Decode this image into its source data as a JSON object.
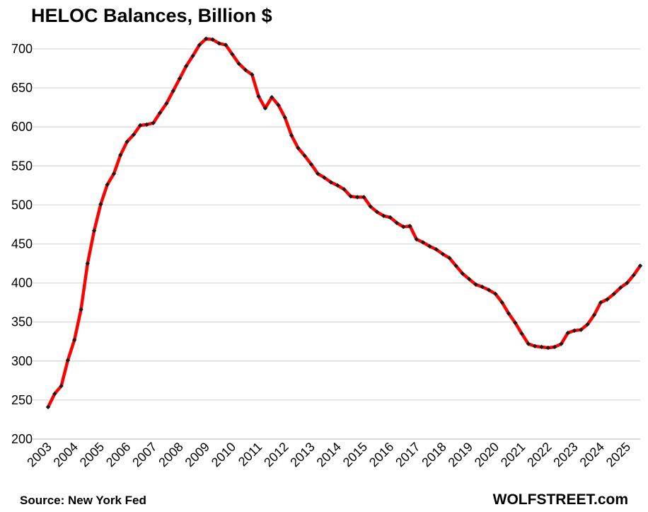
{
  "title": "HELOC Balances, Billion $",
  "source": "Source: New York Fed",
  "brand": "WOLFSTREET.com",
  "colors": {
    "line": "#ff0000",
    "marker": "#1a1a1a",
    "grid": "#d9d9d9",
    "axis": "#bfbfbf"
  },
  "chart_data": {
    "type": "line",
    "title": "HELOC Balances, Billion $",
    "xlabel": "",
    "ylabel": "",
    "ylim": [
      200,
      700
    ],
    "yticks": [
      200,
      250,
      300,
      350,
      400,
      450,
      500,
      550,
      600,
      650,
      700
    ],
    "xticks": [
      "2003",
      "2004",
      "2005",
      "2006",
      "2007",
      "2008",
      "2009",
      "2010",
      "2011",
      "2012",
      "2013",
      "2014",
      "2015",
      "2016",
      "2017",
      "2018",
      "2019",
      "2020",
      "2021",
      "2022",
      "2023",
      "2024",
      "2025"
    ],
    "grid": true,
    "legend": "none",
    "series": [
      {
        "x_start": "2003 Q1",
        "frequency": "quarterly",
        "values": [
          241,
          258,
          268,
          301,
          327,
          366,
          425,
          467,
          501,
          526,
          540,
          564,
          581,
          590,
          602,
          603,
          605,
          618,
          630,
          646,
          662,
          678,
          691,
          705,
          713,
          712,
          707,
          705,
          693,
          681,
          673,
          667,
          639,
          624,
          638,
          628,
          612,
          589,
          573,
          563,
          552,
          540,
          535,
          529,
          525,
          520,
          511,
          510,
          510,
          498,
          491,
          486,
          484,
          477,
          472,
          473,
          456,
          452,
          447,
          443,
          437,
          432,
          422,
          412,
          405,
          398,
          395,
          391,
          386,
          375,
          361,
          349,
          335,
          322,
          319,
          318,
          317,
          318,
          322,
          336,
          339,
          340,
          347,
          359,
          375,
          379,
          386,
          394,
          400,
          410,
          422
        ]
      }
    ]
  }
}
